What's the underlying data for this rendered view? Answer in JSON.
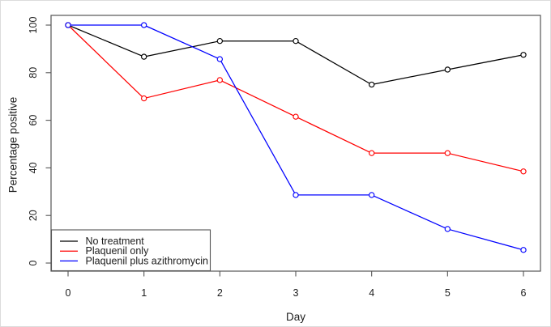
{
  "chart_data": {
    "type": "line",
    "title": "",
    "xlabel": "Day",
    "ylabel": "Percentage positive",
    "x": [
      0,
      1,
      2,
      3,
      4,
      5,
      6
    ],
    "x_ticks": [
      0,
      1,
      2,
      3,
      4,
      5,
      6
    ],
    "y_ticks": [
      0,
      20,
      40,
      60,
      80,
      100
    ],
    "xlim": [
      0,
      6
    ],
    "ylim": [
      0,
      100
    ],
    "grid": false,
    "marker": "open-circle",
    "legend_position": "bottom-left",
    "series": [
      {
        "name": "No treatment",
        "color": "#000000",
        "values": [
          100,
          86.7,
          93.3,
          93.3,
          75.0,
          81.3,
          87.5
        ]
      },
      {
        "name": "Plaquenil only",
        "color": "#FF0000",
        "values": [
          100,
          69.2,
          76.9,
          61.5,
          46.2,
          46.2,
          38.5
        ]
      },
      {
        "name": "Plaquenil plus azithromycin",
        "color": "#0000FF",
        "values": [
          100,
          100.0,
          85.7,
          28.6,
          28.6,
          14.3,
          5.5
        ]
      }
    ],
    "colors": {
      "axis": "#555555",
      "text": "#1c1c1c",
      "background": "#ffffff"
    }
  }
}
